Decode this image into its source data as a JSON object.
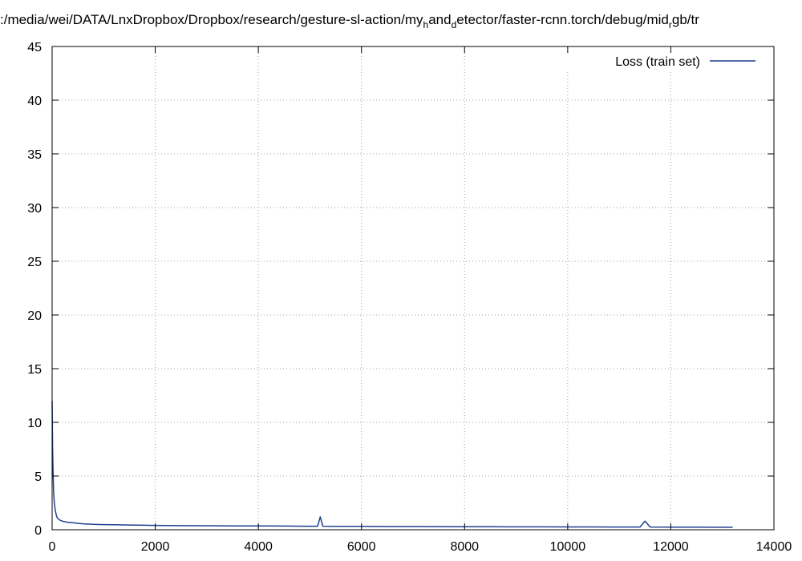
{
  "chart_data": {
    "type": "line",
    "title": ":/media/wei/DATA/LnxDropbox/Dropbox/research/gesture-sl-action/my",
    "title_sub1": "h",
    "title_mid1": "and",
    "title_sub2": "d",
    "title_mid2": "etector/faster-rcnn.torch/debug/mid",
    "title_sub3": "r",
    "title_end": "gb/tr",
    "xlabel": "",
    "ylabel": "",
    "xlim": [
      0,
      14000
    ],
    "ylim": [
      0,
      45
    ],
    "x_ticks": [
      0,
      2000,
      4000,
      6000,
      8000,
      10000,
      12000,
      14000
    ],
    "y_ticks": [
      0,
      5,
      10,
      15,
      20,
      25,
      30,
      35,
      40,
      45
    ],
    "grid": true,
    "legend_position": "top-right",
    "series": [
      {
        "name": "Loss (train set)",
        "color": "#1f3f8f",
        "x": [
          0,
          10,
          20,
          30,
          40,
          60,
          80,
          100,
          150,
          200,
          250,
          300,
          400,
          500,
          600,
          800,
          1000,
          1200,
          1500,
          1800,
          2000,
          2500,
          3000,
          3500,
          4000,
          4500,
          5000,
          5150,
          5200,
          5250,
          5500,
          6000,
          6500,
          7000,
          7500,
          8000,
          8500,
          9000,
          9500,
          10000,
          10500,
          11000,
          11400,
          11500,
          11600,
          12000,
          12500,
          13000,
          13200
        ],
        "y": [
          12.0,
          7.5,
          5.0,
          3.5,
          2.6,
          1.8,
          1.4,
          1.1,
          0.9,
          0.8,
          0.75,
          0.7,
          0.65,
          0.6,
          0.55,
          0.5,
          0.48,
          0.46,
          0.44,
          0.42,
          0.4,
          0.38,
          0.37,
          0.36,
          0.35,
          0.34,
          0.33,
          0.33,
          1.2,
          0.33,
          0.32,
          0.31,
          0.3,
          0.3,
          0.29,
          0.28,
          0.28,
          0.27,
          0.27,
          0.26,
          0.26,
          0.25,
          0.25,
          0.8,
          0.25,
          0.24,
          0.24,
          0.23,
          0.23
        ]
      }
    ]
  }
}
